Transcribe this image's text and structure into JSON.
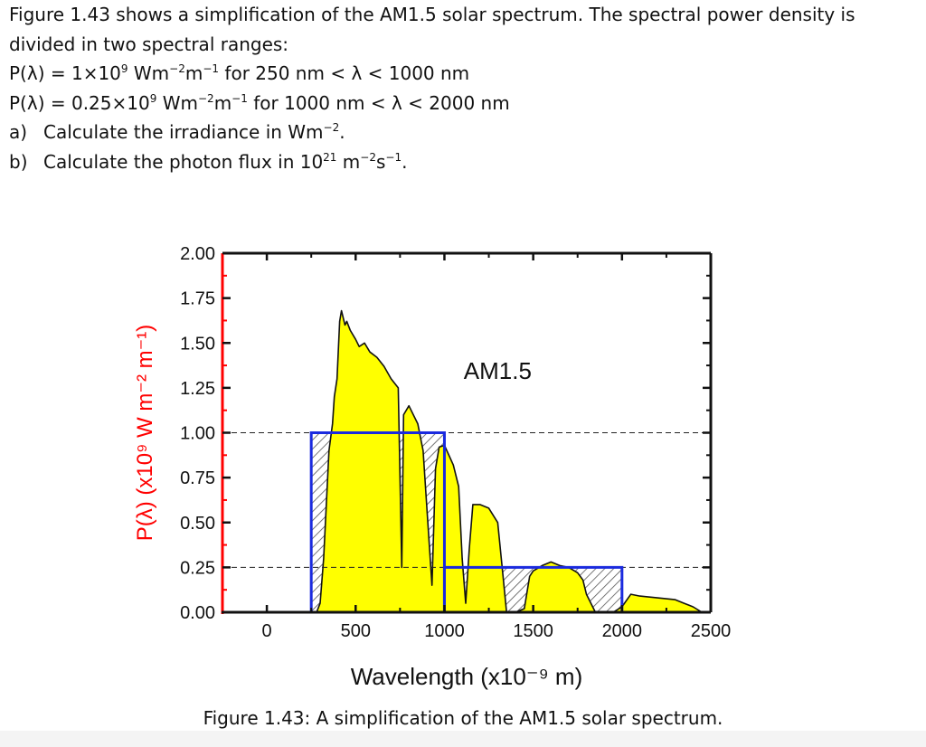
{
  "problem": {
    "intro": "Figure 1.43 shows a simplification of the AM1.5 solar spectrum. The spectral power density is divided in two spectral ranges:",
    "eq1": {
      "lhs": "P(λ) = 1×10",
      "exp1": "9",
      "unit": " Wm",
      "exp2": "−2",
      "unit2": "m",
      "exp3": "−1",
      "range": " for 250 nm < λ < 1000 nm"
    },
    "eq2": {
      "lhs": "P(λ) = 0.25×10",
      "exp1": "9",
      "unit": " Wm",
      "exp2": "−2",
      "unit2": "m",
      "exp3": "−1",
      "range": " for 1000 nm < λ < 2000 nm"
    },
    "qa": {
      "label": "a)",
      "text": "Calculate the irradiance in Wm",
      "exp": "−2",
      "tail": "."
    },
    "qb": {
      "label": "b)",
      "text": "Calculate the photon flux in 10",
      "exp": "21",
      "mid": " m",
      "exp2": "−2",
      "mid2": "s",
      "exp3": "−1",
      "tail": "."
    }
  },
  "chart_data": {
    "type": "area",
    "ylabel": "P(λ) (x10⁹ W m⁻² m⁻¹)",
    "xlabel": "Wavelength (x10⁻⁹ m)",
    "xlim": [
      -250,
      2500
    ],
    "ylim": [
      0,
      2.0
    ],
    "xticks": [
      0,
      500,
      1000,
      1500,
      2000,
      2500
    ],
    "xtick_labels": [
      "0",
      "500",
      "1000",
      "1500",
      "2000",
      "2500"
    ],
    "yticks": [
      0,
      0.25,
      0.5,
      0.75,
      1.0,
      1.25,
      1.5,
      1.75,
      2.0
    ],
    "ytick_labels": [
      "0.00",
      "0.25",
      "0.50",
      "0.75",
      "1.00",
      "1.25",
      "1.50",
      "1.75",
      "2.00"
    ],
    "annotation": "AM1.5",
    "spectrum": {
      "x": [
        280,
        300,
        320,
        350,
        370,
        380,
        395,
        410,
        420,
        440,
        450,
        470,
        500,
        520,
        550,
        580,
        620,
        660,
        700,
        740,
        760,
        770,
        800,
        850,
        880,
        900,
        930,
        950,
        970,
        1000,
        1050,
        1080,
        1100,
        1120,
        1140,
        1160,
        1200,
        1250,
        1300,
        1330,
        1350,
        1400,
        1450,
        1480,
        1500,
        1550,
        1600,
        1650,
        1700,
        1750,
        1780,
        1800,
        1850,
        1900,
        1950,
        2000,
        2050,
        2100,
        2200,
        2300,
        2350,
        2400,
        2450
      ],
      "y": [
        0.0,
        0.05,
        0.3,
        0.9,
        1.05,
        1.2,
        1.3,
        1.62,
        1.68,
        1.6,
        1.62,
        1.57,
        1.52,
        1.48,
        1.5,
        1.45,
        1.42,
        1.37,
        1.3,
        1.25,
        0.25,
        1.1,
        1.15,
        1.05,
        0.9,
        0.6,
        0.15,
        0.8,
        0.92,
        0.93,
        0.82,
        0.7,
        0.3,
        0.05,
        0.35,
        0.6,
        0.6,
        0.58,
        0.5,
        0.2,
        0.0,
        0.0,
        0.02,
        0.2,
        0.23,
        0.26,
        0.28,
        0.26,
        0.25,
        0.22,
        0.18,
        0.1,
        0.0,
        0.0,
        0.0,
        0.03,
        0.1,
        0.09,
        0.08,
        0.07,
        0.05,
        0.03,
        0.0
      ]
    },
    "series": [
      {
        "name": "250–1000 nm",
        "x": [
          250,
          1000
        ],
        "value": 1.0
      },
      {
        "name": "1000–2000 nm",
        "x": [
          1000,
          2000
        ],
        "value": 0.25
      }
    ],
    "dashed_lines": [
      1.0,
      0.25
    ],
    "grid": false,
    "colors": {
      "spectrum_fill": "#ffff00",
      "rect_border": "#1a2adf",
      "axis_label": "#ff0000",
      "hatch": "#555555"
    }
  },
  "caption": "Figure 1.43: A simplification of the AM1.5 solar spectrum."
}
